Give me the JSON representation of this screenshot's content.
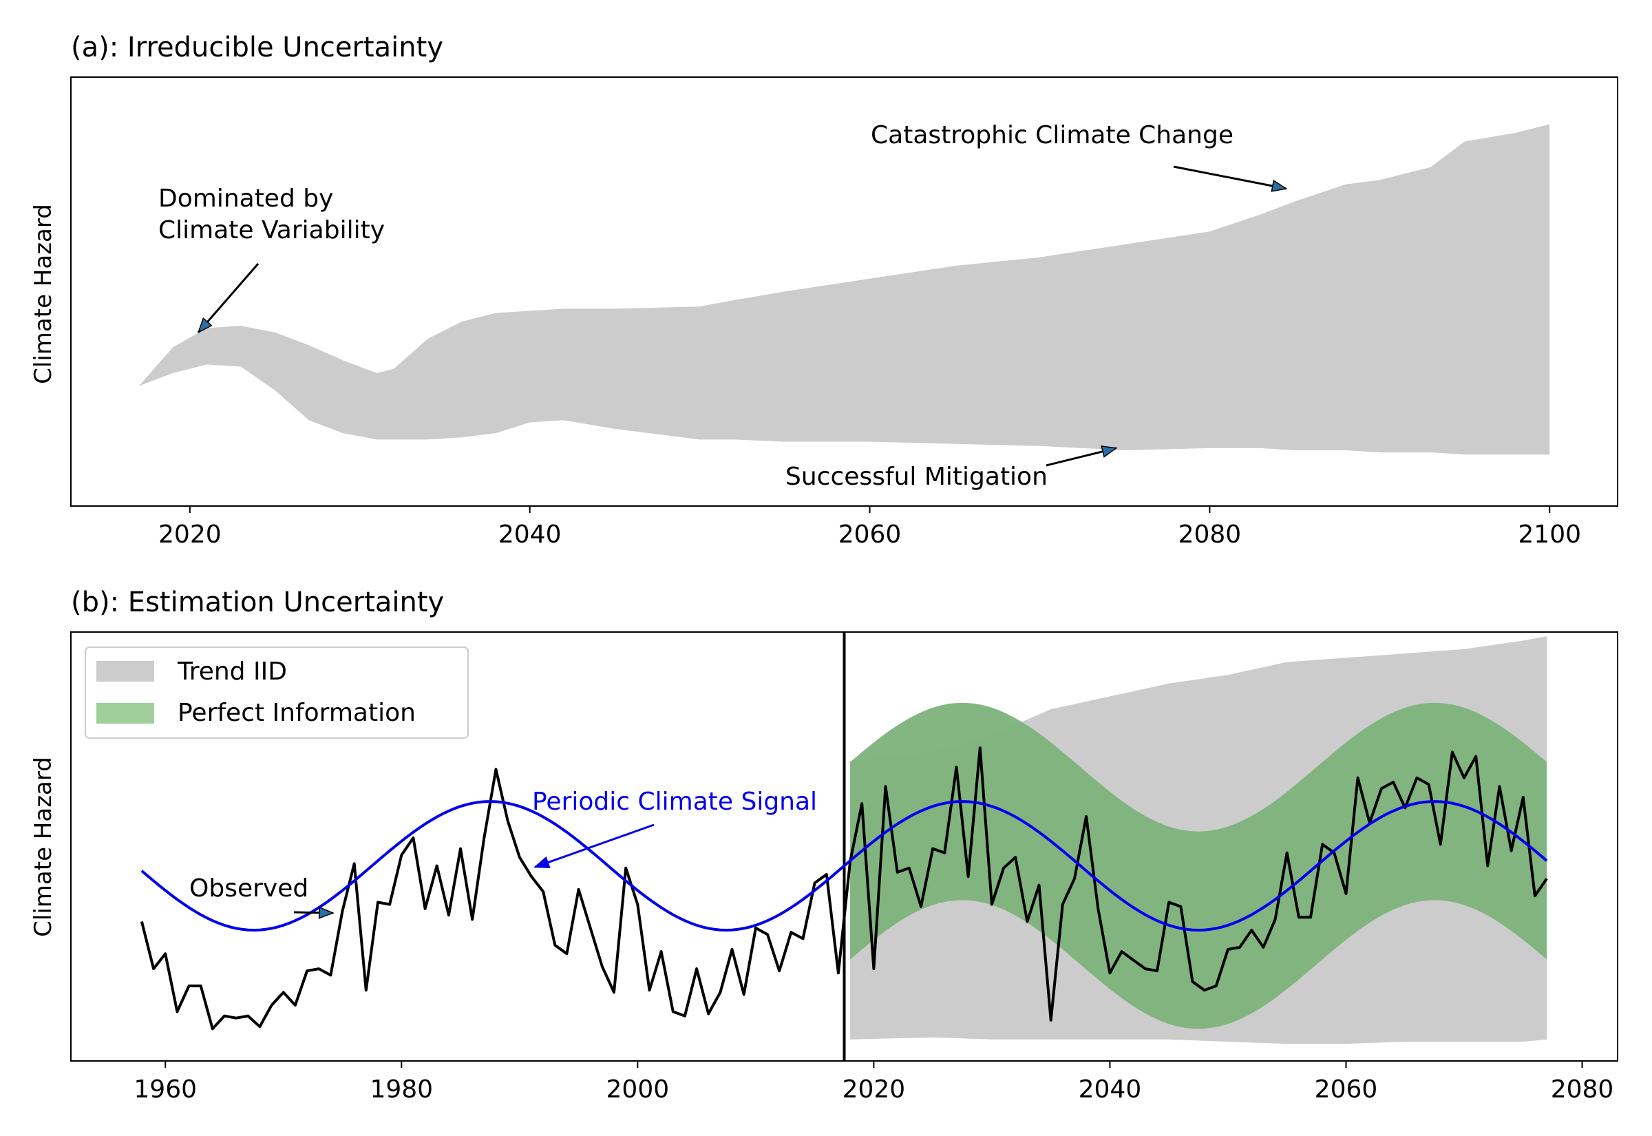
{
  "chart_data": [
    {
      "type": "area",
      "title": "(a): Irreducible Uncertainty",
      "ylabel": "Climate Hazard",
      "xlabel": "",
      "xlim": [
        2013,
        2104
      ],
      "ylim": [
        0,
        10
      ],
      "x_ticks": [
        "2020",
        "2040",
        "2060",
        "2080",
        "2100"
      ],
      "x_tick_values": [
        2020,
        2040,
        2060,
        2080,
        2100
      ],
      "band": {
        "color": "#cccccc",
        "x": [
          2017,
          2019,
          2021,
          2023,
          2025,
          2027,
          2029,
          2031,
          2032,
          2034,
          2036,
          2038,
          2040,
          2042,
          2045,
          2050,
          2052,
          2055,
          2060,
          2065,
          2070,
          2075,
          2080,
          2083,
          2085,
          2088,
          2090,
          2093,
          2095,
          2098,
          2100
        ],
        "upper": [
          2.8,
          3.7,
          4.15,
          4.2,
          4.05,
          3.75,
          3.4,
          3.1,
          3.2,
          3.9,
          4.3,
          4.5,
          4.55,
          4.6,
          4.6,
          4.65,
          4.8,
          5.0,
          5.3,
          5.6,
          5.8,
          6.1,
          6.4,
          6.8,
          7.1,
          7.5,
          7.6,
          7.9,
          8.5,
          8.7,
          8.9
        ],
        "lower": [
          2.8,
          3.1,
          3.3,
          3.25,
          2.7,
          2.0,
          1.7,
          1.55,
          1.55,
          1.55,
          1.6,
          1.7,
          1.95,
          2.0,
          1.8,
          1.55,
          1.55,
          1.5,
          1.5,
          1.45,
          1.4,
          1.3,
          1.35,
          1.35,
          1.3,
          1.3,
          1.25,
          1.25,
          1.2,
          1.2,
          1.2
        ]
      },
      "annotations": [
        {
          "lines": [
            "Dominated by",
            "Climate Variability"
          ],
          "point": [
            2020.5,
            4.05
          ],
          "text_at": [
            2018,
            6.5
          ]
        },
        {
          "lines": [
            "Catastrophic Climate Change"
          ],
          "point": [
            2084.5,
            7.4
          ],
          "text_at": [
            2060,
            8.5
          ]
        },
        {
          "lines": [
            "Successful Mitigation"
          ],
          "point": [
            2074.5,
            1.35
          ],
          "text_at": [
            2055,
            0.5
          ]
        }
      ]
    },
    {
      "type": "line",
      "title": "(b): Estimation Uncertainty",
      "ylabel": "Climate Hazard",
      "xlabel": "",
      "xlim": [
        1952,
        2083
      ],
      "ylim": [
        0,
        10
      ],
      "x_ticks": [
        "1960",
        "1980",
        "2000",
        "2020",
        "2040",
        "2060",
        "2080"
      ],
      "x_tick_values": [
        1960,
        1980,
        2000,
        2020,
        2040,
        2060,
        2080
      ],
      "vline_x": 2017.5,
      "legend": {
        "position": "top-left",
        "entries": [
          {
            "label": "Trend IID",
            "color": "#cccccc"
          },
          {
            "label": "Perfect Information",
            "color": "#9fcf9a"
          }
        ]
      },
      "trend_band": {
        "color": "#cccccc",
        "x": [
          2018,
          2025,
          2030,
          2035,
          2040,
          2045,
          2050,
          2055,
          2060,
          2065,
          2070,
          2075,
          2077
        ],
        "upper": [
          7.0,
          7.2,
          7.6,
          8.2,
          8.5,
          8.8,
          9.0,
          9.3,
          9.4,
          9.5,
          9.6,
          9.8,
          9.9
        ],
        "lower": [
          0.5,
          0.55,
          0.5,
          0.5,
          0.5,
          0.5,
          0.45,
          0.4,
          0.4,
          0.45,
          0.45,
          0.45,
          0.5
        ]
      },
      "periodic_band": {
        "color": "#7cb27a",
        "x_start": 2018,
        "x_end": 2077,
        "center_mean": 4.55,
        "center_amplitude": 1.5,
        "period": 40,
        "peak_year": 1987.5,
        "half_width_start": 2.3,
        "half_width_end": 2.3
      },
      "series": [
        {
          "name": "Periodic Climate Signal",
          "color": "#0000ee",
          "kind": "sinusoid",
          "x_start": 1958,
          "x_end": 2077,
          "mean": 4.55,
          "amplitude": 1.5,
          "period": 40,
          "peak_year": 1987.5
        },
        {
          "name": "Observed",
          "color": "#000000",
          "x": [
            1958,
            1959,
            1960,
            1961,
            1962,
            1963,
            1964,
            1965,
            1966,
            1967,
            1968,
            1969,
            1970,
            1971,
            1972,
            1973,
            1974,
            1975,
            1976,
            1977,
            1978,
            1979,
            1980,
            1981,
            1982,
            1983,
            1984,
            1985,
            1986,
            1987,
            1988,
            1989,
            1990,
            1991,
            1992,
            1993,
            1994,
            1995,
            1996,
            1997,
            1998,
            1999,
            2000,
            2001,
            2002,
            2003,
            2004,
            2005,
            2006,
            2007,
            2008,
            2009,
            2010,
            2011,
            2012,
            2013,
            2014,
            2015,
            2016,
            2017,
            2018,
            2019,
            2020,
            2021,
            2022,
            2023,
            2024,
            2025,
            2026,
            2027,
            2028,
            2029,
            2030,
            2031,
            2032,
            2033,
            2034,
            2035,
            2036,
            2037,
            2038,
            2039,
            2040,
            2041,
            2042,
            2043,
            2044,
            2045,
            2046,
            2047,
            2048,
            2049,
            2050,
            2051,
            2052,
            2053,
            2054,
            2055,
            2056,
            2057,
            2058,
            2059,
            2060,
            2061,
            2062,
            2063,
            2064,
            2065,
            2066,
            2067,
            2068,
            2069,
            2070,
            2071,
            2072,
            2073,
            2074,
            2075,
            2076,
            2077
          ],
          "values": [
            3.25,
            2.15,
            2.5,
            1.15,
            1.75,
            1.75,
            0.75,
            1.05,
            1.0,
            1.05,
            0.8,
            1.3,
            1.6,
            1.3,
            2.1,
            2.15,
            2.0,
            3.5,
            4.6,
            1.65,
            3.7,
            3.65,
            4.8,
            5.2,
            3.55,
            4.55,
            3.4,
            4.95,
            3.3,
            5.2,
            6.8,
            5.6,
            4.75,
            4.3,
            3.95,
            2.7,
            2.5,
            4.0,
            3.1,
            2.2,
            1.6,
            4.5,
            3.65,
            1.65,
            2.55,
            1.15,
            1.05,
            2.15,
            1.1,
            1.6,
            2.6,
            1.55,
            3.1,
            2.95,
            2.1,
            3.0,
            2.85,
            4.15,
            4.35,
            2.05,
            4.65,
            6.0,
            2.15,
            6.4,
            4.4,
            4.5,
            3.6,
            4.95,
            4.85,
            6.85,
            4.3,
            7.3,
            3.65,
            4.5,
            4.75,
            3.25,
            4.1,
            0.95,
            3.65,
            4.25,
            5.7,
            3.55,
            2.05,
            2.55,
            2.35,
            2.15,
            2.1,
            3.7,
            3.6,
            1.85,
            1.65,
            1.75,
            2.6,
            2.65,
            3.05,
            2.65,
            3.3,
            4.85,
            3.35,
            3.35,
            5.05,
            4.85,
            3.9,
            6.6,
            5.55,
            6.35,
            6.5,
            5.9,
            6.6,
            6.45,
            5.05,
            7.2,
            6.6,
            7.1,
            4.55,
            6.4,
            4.9,
            6.15,
            3.85,
            4.25
          ]
        }
      ],
      "annotations": [
        {
          "text": "Periodic Climate Signal",
          "color": "#0000ee",
          "point": [
            1991.3,
            4.52
          ],
          "text_at": [
            1991,
            6.1
          ]
        },
        {
          "text": "Observed",
          "color": "#000000",
          "point": [
            1974.2,
            3.45
          ],
          "text_at": [
            1963.5,
            4.1
          ]
        }
      ]
    }
  ]
}
